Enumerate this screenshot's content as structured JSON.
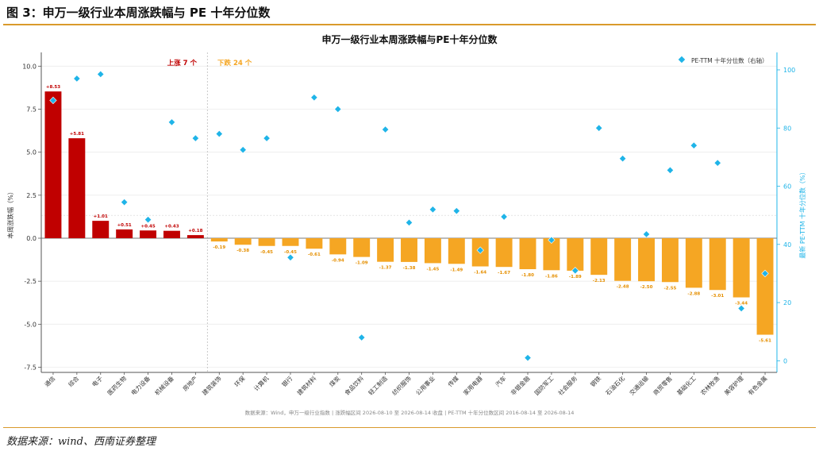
{
  "header": {
    "figure_title": "图 3：申万一级行业本周涨跌幅与 PE 十年分位数"
  },
  "footer": {
    "source": "数据来源：wind、西南证券整理"
  },
  "colors": {
    "up": "#c00000",
    "down": "#f5a623",
    "pe": "#1fb4e8",
    "rule": "#d99a2b"
  },
  "chart_data": {
    "type": "bar",
    "title": "申万一级行业本周涨跌幅与PE十年分位数",
    "ylabel": "本周涨跌幅（%）",
    "y2label": "最新 PE-TTM 十年分位数（%）",
    "ylim": [
      -7.8,
      10.8
    ],
    "y2lim": [
      -4,
      106
    ],
    "yticks": [
      "10.0",
      "7.5",
      "5.0",
      "2.5",
      "0.0",
      "-2.5",
      "-5.0",
      "-7.5"
    ],
    "y2ticks": [
      "100",
      "80",
      "60",
      "40",
      "20",
      "0"
    ],
    "up_note": "上涨 7 个",
    "down_note": "下跌 24 个",
    "legend": {
      "label": "PE-TTM 十年分位数（右轴）",
      "position": "top-right"
    },
    "footnote": "数据来源：Wind，申万一级行业指数 | 涨跌幅区间 2026-08-10 至 2026-08-14 收盘 | PE-TTM 十年分位数区间 2016-08-14 至 2026-08-14",
    "categories": [
      "通信",
      "综合",
      "电子",
      "医药生物",
      "电力设备",
      "机械设备",
      "房地产",
      "建筑装饰",
      "环保",
      "计算机",
      "银行",
      "建筑材料",
      "煤炭",
      "食品饮料",
      "轻工制造",
      "纺织服饰",
      "公用事业",
      "传媒",
      "家用电器",
      "汽车",
      "非银金融",
      "国防军工",
      "社会服务",
      "钢铁",
      "石油石化",
      "交通运输",
      "商贸零售",
      "基础化工",
      "农林牧渔",
      "美容护理",
      "有色金属"
    ],
    "series": [
      {
        "values": [
          8.53,
          5.81,
          1.01,
          0.51,
          0.45,
          0.43,
          0.18,
          -0.19,
          -0.38,
          -0.45,
          -0.45,
          -0.61,
          -0.94,
          -1.09,
          -1.37,
          -1.38,
          -1.45,
          -1.49,
          -1.64,
          -1.67,
          -1.8,
          -1.86,
          -1.89,
          -2.13,
          -2.48,
          -2.5,
          -2.55,
          -2.88,
          -3.01,
          -3.44,
          -5.61
        ]
      },
      {
        "values": [
          89.5,
          97,
          98.5,
          54.5,
          48.5,
          82,
          76.5,
          78,
          72.5,
          76.5,
          35.5,
          90.5,
          86.5,
          8,
          79.5,
          47.5,
          52,
          51.5,
          38,
          49.5,
          1,
          41.5,
          31,
          80,
          69.5,
          43.5,
          65.5,
          74,
          68,
          18,
          30
        ]
      }
    ],
    "value_labels": [
      "+8.53",
      "+5.81",
      "+1.01",
      "+0.51",
      "+0.45",
      "+0.43",
      "+0.18",
      "-0.19",
      "-0.38",
      "-0.45",
      "-0.45",
      "-0.61",
      "-0.94",
      "-1.09",
      "-1.37",
      "-1.38",
      "-1.45",
      "-1.49",
      "-1.64",
      "-1.67",
      "-1.80",
      "-1.86",
      "-1.89",
      "-2.13",
      "-2.48",
      "-2.50",
      "-2.55",
      "-2.88",
      "-3.01",
      "-3.44",
      "-5.61"
    ],
    "grid": true
  }
}
